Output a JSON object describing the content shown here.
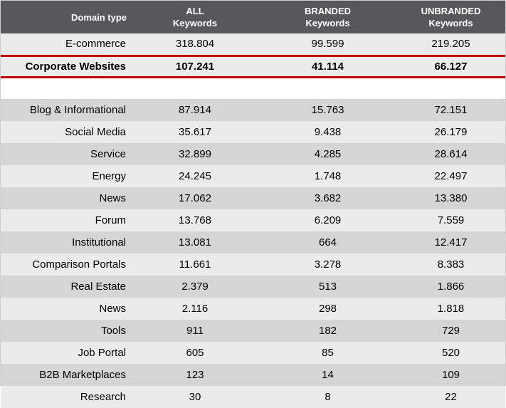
{
  "chart_data": {
    "type": "table",
    "columns": [
      "Domain type",
      "ALL Keywords",
      "BRANDED Keywords",
      "UNBRANDED Keywords"
    ],
    "header_lines": [
      [
        "Domain type"
      ],
      [
        "ALL",
        "Keywords"
      ],
      [
        "BRANDED",
        "Keywords"
      ],
      [
        "UNBRANDED",
        "Keywords"
      ]
    ],
    "highlight_row": 1,
    "highlight_color": "#c00000",
    "header_color": "#57585b",
    "rows": [
      {
        "domain": "E-commerce",
        "all": "318.804",
        "branded": "99.599",
        "unbranded": "219.205"
      },
      {
        "domain": "Corporate Websites",
        "all": "107.241",
        "branded": "41.114",
        "unbranded": "66.127"
      },
      {
        "domain": "Blog & Informational",
        "all": "87.914",
        "branded": "15.763",
        "unbranded": "72.151"
      },
      {
        "domain": "Social Media",
        "all": "35.617",
        "branded": "9.438",
        "unbranded": "26.179"
      },
      {
        "domain": "Service",
        "all": "32.899",
        "branded": "4.285",
        "unbranded": "28.614"
      },
      {
        "domain": "Energy",
        "all": "24.245",
        "branded": "1.748",
        "unbranded": "22.497"
      },
      {
        "domain": "News",
        "all": "17.062",
        "branded": "3.682",
        "unbranded": "13.380"
      },
      {
        "domain": "Forum",
        "all": "13.768",
        "branded": "6.209",
        "unbranded": "7.559"
      },
      {
        "domain": "Institutional",
        "all": "13.081",
        "branded": "664",
        "unbranded": "12.417"
      },
      {
        "domain": "Comparison Portals",
        "all": "11.661",
        "branded": "3.278",
        "unbranded": "8.383"
      },
      {
        "domain": "Real Estate",
        "all": "2.379",
        "branded": "513",
        "unbranded": "1.866"
      },
      {
        "domain": "News",
        "all": "2.116",
        "branded": "298",
        "unbranded": "1.818"
      },
      {
        "domain": "Tools",
        "all": "911",
        "branded": "182",
        "unbranded": "729"
      },
      {
        "domain": "Job Portal",
        "all": "605",
        "branded": "85",
        "unbranded": "520"
      },
      {
        "domain": "B2B Marketplaces",
        "all": "123",
        "branded": "14",
        "unbranded": "109"
      },
      {
        "domain": "Research",
        "all": "30",
        "branded": "8",
        "unbranded": "22"
      }
    ]
  }
}
